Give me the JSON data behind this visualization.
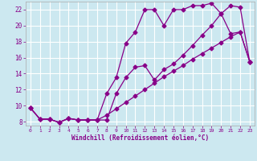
{
  "xlabel": "Windchill (Refroidissement éolien,°C)",
  "bg_color": "#cce8f0",
  "line_color": "#880088",
  "marker": "D",
  "markersize": 2.5,
  "linewidth": 0.9,
  "xlim": [
    -0.5,
    23.5
  ],
  "ylim": [
    7.5,
    23.0
  ],
  "yticks": [
    8,
    10,
    12,
    14,
    16,
    18,
    20,
    22
  ],
  "xticks": [
    0,
    1,
    2,
    3,
    4,
    5,
    6,
    7,
    8,
    9,
    10,
    11,
    12,
    13,
    14,
    15,
    16,
    17,
    18,
    19,
    20,
    21,
    22,
    23
  ],
  "line1_x": [
    0,
    1,
    2,
    3,
    4,
    5,
    6,
    7,
    8,
    9,
    10,
    11,
    12,
    13,
    14,
    15,
    16,
    17,
    18,
    19,
    20,
    21,
    22,
    23
  ],
  "line1_y": [
    9.7,
    8.3,
    8.3,
    7.9,
    8.4,
    8.2,
    8.2,
    8.2,
    8.8,
    9.6,
    10.4,
    11.2,
    12.0,
    12.8,
    13.6,
    14.3,
    15.0,
    15.8,
    16.5,
    17.2,
    17.9,
    18.6,
    19.2,
    15.5
  ],
  "line2_x": [
    0,
    1,
    2,
    3,
    4,
    5,
    6,
    7,
    8,
    9,
    10,
    11,
    12,
    13,
    14,
    15,
    16,
    17,
    18,
    19,
    20,
    21,
    22,
    23
  ],
  "line2_y": [
    9.7,
    8.3,
    8.3,
    7.9,
    8.4,
    8.2,
    8.2,
    8.2,
    11.5,
    13.5,
    17.8,
    19.2,
    22.0,
    22.0,
    20.0,
    22.0,
    22.0,
    22.5,
    22.5,
    22.8,
    21.5,
    22.5,
    22.3,
    15.5
  ],
  "line3_x": [
    0,
    1,
    2,
    3,
    4,
    5,
    6,
    7,
    8,
    9,
    10,
    11,
    12,
    13,
    14,
    15,
    16,
    17,
    18,
    19,
    20,
    21,
    22,
    23
  ],
  "line3_y": [
    9.7,
    8.3,
    8.3,
    7.9,
    8.4,
    8.2,
    8.2,
    8.2,
    8.2,
    11.5,
    13.5,
    14.8,
    15.0,
    13.2,
    14.5,
    15.2,
    16.3,
    17.5,
    18.8,
    20.0,
    21.5,
    19.0,
    19.2,
    15.5
  ]
}
